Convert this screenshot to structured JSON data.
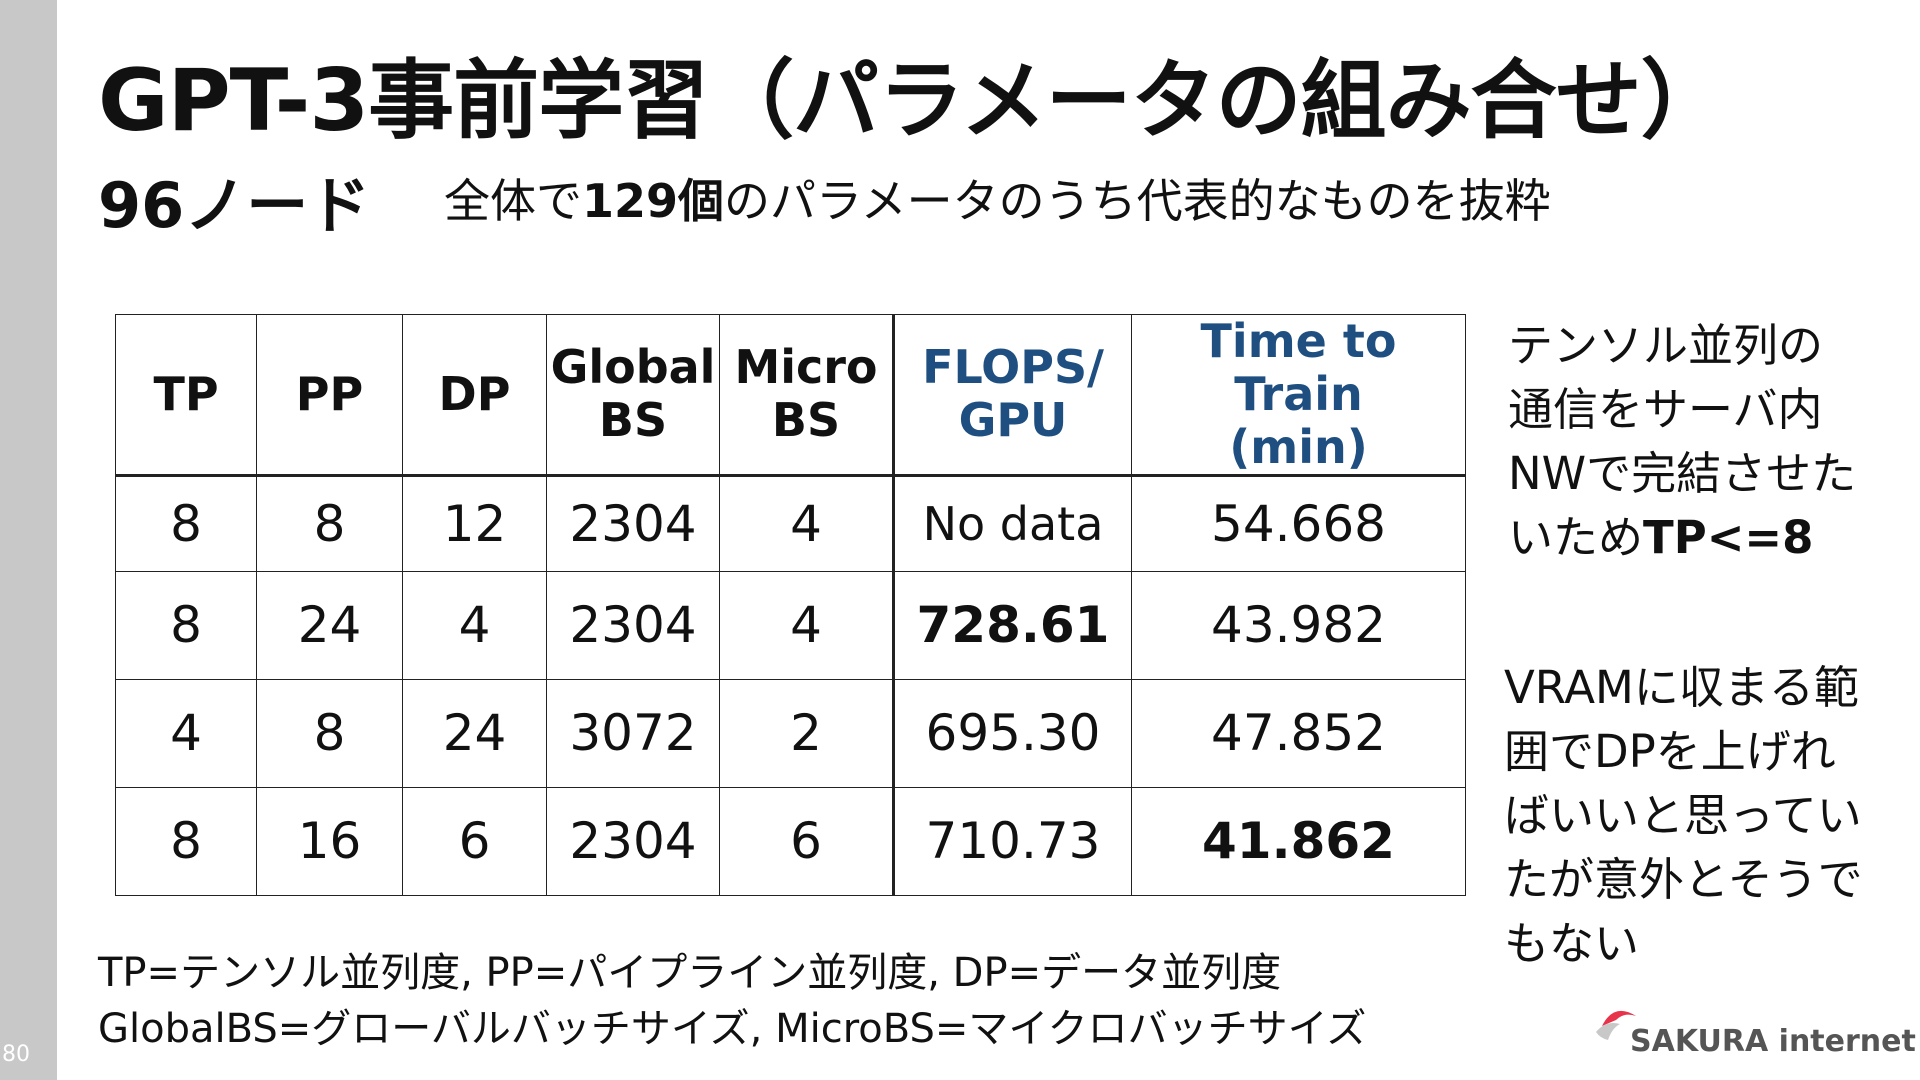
{
  "page_number": "80",
  "title": "GPT-3事前学習（パラメータの組み合せ）",
  "subtitle": {
    "nodes": "96ノード",
    "desc_pre": "全体で",
    "desc_bold": "129個",
    "desc_post": "のパラメータのうち代表的なものを抜粋"
  },
  "table": {
    "headers": [
      {
        "line1": "TP",
        "line2": ""
      },
      {
        "line1": "PP",
        "line2": ""
      },
      {
        "line1": "DP",
        "line2": ""
      },
      {
        "line1": "Global",
        "line2": "BS"
      },
      {
        "line1": "Micro",
        "line2": "BS"
      },
      {
        "line1": "FLOPS/",
        "line2": "GPU"
      },
      {
        "line1": "Time to Train",
        "line2": "(min)"
      }
    ],
    "rows": [
      [
        "8",
        "8",
        "12",
        "2304",
        "4",
        "No data",
        "54.668"
      ],
      [
        "8",
        "24",
        "4",
        "2304",
        "4",
        "728.61",
        "43.982"
      ],
      [
        "4",
        "8",
        "24",
        "3072",
        "2",
        "695.30",
        "47.852"
      ],
      [
        "8",
        "16",
        "6",
        "2304",
        "6",
        "710.73",
        "41.862"
      ]
    ],
    "header_color": "#1e4f80"
  },
  "notes": {
    "note1_lines": [
      "テンソル並列の",
      "通信をサーバ内",
      "NWで完結させた",
      "いため"
    ],
    "note1_bold": "TP<=8",
    "note2_lines": [
      "VRAMに収まる範",
      "囲でDPを上げれ",
      "ばいいと思ってい",
      "たが意外とそうで",
      "もない"
    ]
  },
  "footer": {
    "line1": "TP=テンソル並列度, PP=パイプライン並列度, DP=データ並列度",
    "line2": "GlobalBS=グローバルバッチサイズ, MicroBS=マイクロバッチサイズ"
  },
  "logo": {
    "text": "SAKURA internet",
    "accent": "#e8344b"
  }
}
